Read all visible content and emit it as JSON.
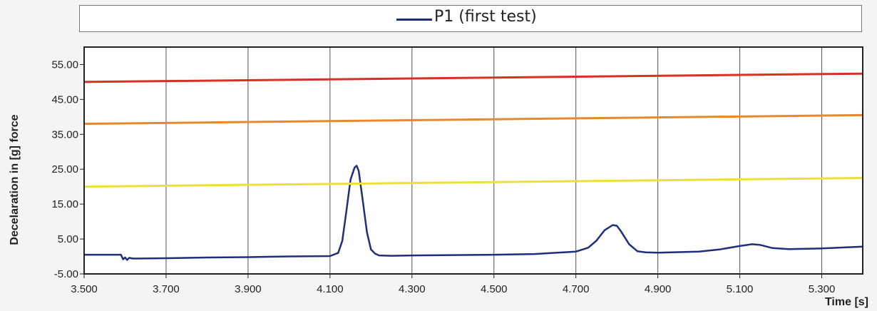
{
  "chart_data": {
    "type": "line",
    "legend": {
      "position": "top",
      "entries": [
        "P1 (first test)"
      ]
    },
    "xlabel": "Time [s]",
    "ylabel": "Decelaration in [g]  force",
    "xlim": [
      3.5,
      5.4
    ],
    "ylim": [
      -5,
      60
    ],
    "x_ticks": [
      "3.500",
      "3.700",
      "3.900",
      "4.100",
      "4.300",
      "4.500",
      "4.700",
      "4.900",
      "5.100",
      "5.300"
    ],
    "y_ticks": [
      "-5.00",
      "5.00",
      "15.00",
      "25.00",
      "35.00",
      "45.00",
      "55.00"
    ],
    "grid": "vertical",
    "series": [
      {
        "name": "P1 (first test)",
        "color": "#1f2f7a",
        "x": [
          3.5,
          3.59,
          3.595,
          3.6,
          3.605,
          3.61,
          3.62,
          3.7,
          3.8,
          3.9,
          4.0,
          4.1,
          4.12,
          4.13,
          4.14,
          4.15,
          4.16,
          4.165,
          4.17,
          4.18,
          4.19,
          4.2,
          4.21,
          4.22,
          4.25,
          4.3,
          4.4,
          4.5,
          4.6,
          4.7,
          4.73,
          4.75,
          4.77,
          4.79,
          4.8,
          4.81,
          4.83,
          4.85,
          4.87,
          4.9,
          5.0,
          5.05,
          5.1,
          5.13,
          5.15,
          5.18,
          5.22,
          5.3,
          5.4
        ],
        "values": [
          0.5,
          0.5,
          -0.8,
          -0.3,
          -1.0,
          -0.4,
          -0.6,
          -0.5,
          -0.3,
          -0.2,
          0.0,
          0.1,
          1.0,
          4.5,
          13.0,
          22.0,
          25.5,
          26.0,
          24.5,
          16.0,
          7.0,
          2.0,
          0.8,
          0.3,
          0.2,
          0.3,
          0.4,
          0.5,
          0.7,
          1.4,
          2.5,
          4.5,
          7.5,
          9.0,
          8.8,
          7.2,
          3.5,
          1.5,
          1.2,
          1.1,
          1.4,
          2.0,
          3.0,
          3.5,
          3.3,
          2.4,
          2.1,
          2.3,
          2.8
        ]
      },
      {
        "color": "#d93025",
        "x": [
          3.5,
          5.4
        ],
        "values": [
          50.0,
          52.4
        ]
      },
      {
        "color": "#e8892e",
        "x": [
          3.5,
          5.4
        ],
        "values": [
          38.0,
          40.5
        ]
      },
      {
        "color": "#ece03a",
        "x": [
          3.5,
          5.4
        ],
        "values": [
          20.0,
          22.5
        ]
      }
    ]
  }
}
